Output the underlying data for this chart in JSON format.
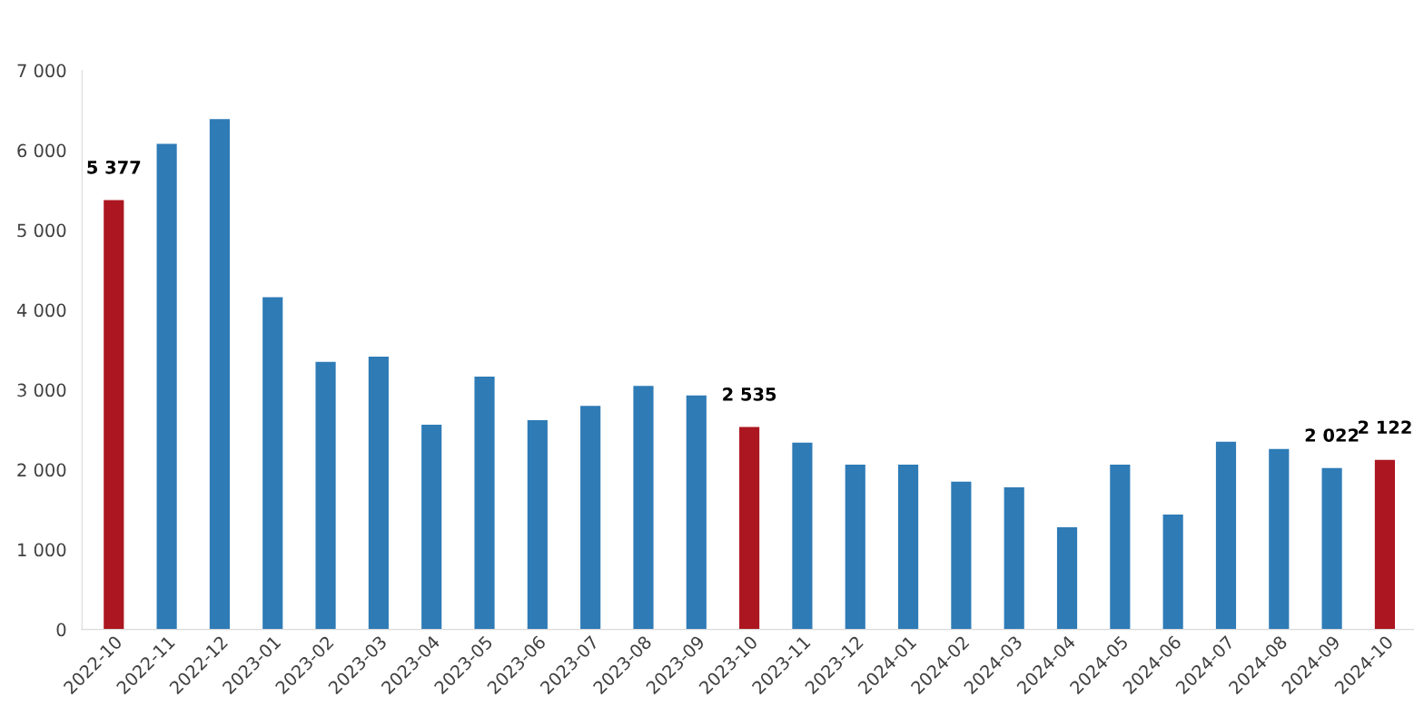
{
  "chart_data": {
    "type": "bar",
    "categories": [
      "2022-10",
      "2022-11",
      "2022-12",
      "2023-01",
      "2023-02",
      "2023-03",
      "2023-04",
      "2023-05",
      "2023-06",
      "2023-07",
      "2023-08",
      "2023-09",
      "2023-10",
      "2023-11",
      "2023-12",
      "2024-01",
      "2024-02",
      "2024-03",
      "2024-04",
      "2024-05",
      "2024-06",
      "2024-07",
      "2024-08",
      "2024-09",
      "2024-10"
    ],
    "values": [
      5377,
      6080,
      6390,
      4160,
      3350,
      3415,
      2565,
      3165,
      2620,
      2800,
      3050,
      2930,
      2535,
      2340,
      2065,
      2065,
      1850,
      1780,
      1280,
      2065,
      1440,
      2350,
      2260,
      2022,
      2122
    ],
    "colors": [
      "#ac1620",
      "#2e7bb6",
      "#2e7bb6",
      "#2e7bb6",
      "#2e7bb6",
      "#2e7bb6",
      "#2e7bb6",
      "#2e7bb6",
      "#2e7bb6",
      "#2e7bb6",
      "#2e7bb6",
      "#2e7bb6",
      "#ac1620",
      "#2e7bb6",
      "#2e7bb6",
      "#2e7bb6",
      "#2e7bb6",
      "#2e7bb6",
      "#2e7bb6",
      "#2e7bb6",
      "#2e7bb6",
      "#2e7bb6",
      "#2e7bb6",
      "#2e7bb6",
      "#ac1620"
    ],
    "value_labels": [
      "5 377",
      null,
      null,
      null,
      null,
      null,
      null,
      null,
      null,
      null,
      null,
      null,
      "2 535",
      null,
      null,
      null,
      null,
      null,
      null,
      null,
      null,
      null,
      null,
      "2 022",
      "2 122"
    ],
    "ylim": [
      0,
      7000
    ],
    "yticks": [
      0,
      {
        "value": 1000,
        "label": "1 000"
      },
      {
        "value": 2000,
        "label": "2 000"
      },
      {
        "value": 3000,
        "label": "3 000"
      },
      {
        "value": 4000,
        "label": "4 000"
      },
      {
        "value": 5000,
        "label": "5 000"
      },
      {
        "value": 6000,
        "label": "6 000"
      },
      {
        "value": 7000,
        "label": "7 000"
      }
    ],
    "grid": false,
    "legend": false
  }
}
